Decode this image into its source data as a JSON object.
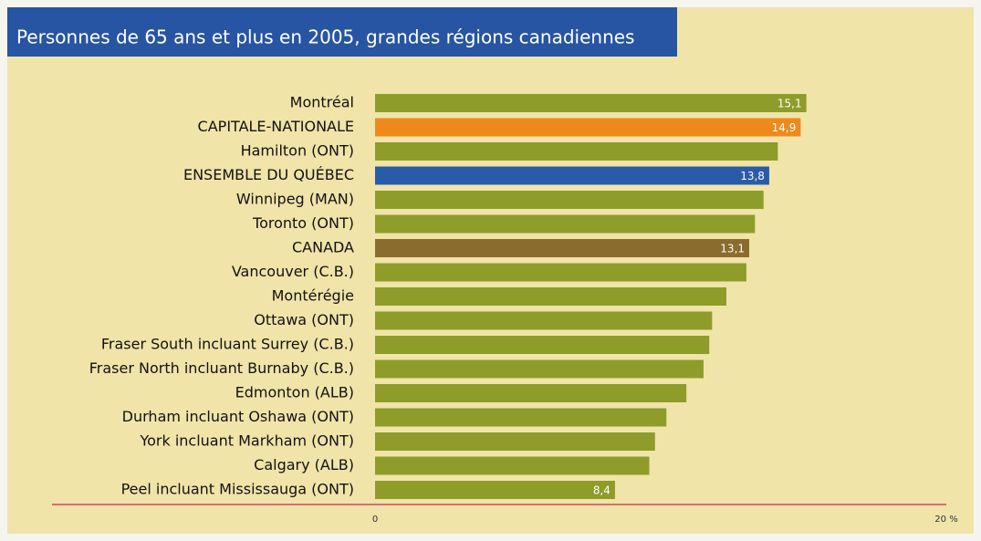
{
  "chart_data": {
    "type": "barh",
    "title": "Personnes de 65 ans et plus en 2005, grandes régions canadiennes",
    "categories": [
      "Montréal",
      "CAPITALE-NATIONALE",
      "Hamilton (ONT)",
      "ENSEMBLE DU QUÉBEC",
      "Winnipeg (MAN)",
      "Toronto (ONT)",
      "CANADA",
      "Vancouver (C.B.)",
      "Montérégie",
      "Ottawa (ONT)",
      "Fraser South incluant Surrey (C.B.)",
      "Fraser North incluant Burnaby (C.B.)",
      "Edmonton (ALB)",
      "Durham incluant Oshawa (ONT)",
      "York incluant Markham (ONT)",
      "Calgary (ALB)",
      "Peel incluant Mississauga (ONT)"
    ],
    "values": [
      15.1,
      14.9,
      14.1,
      13.8,
      13.6,
      13.3,
      13.1,
      13.0,
      12.3,
      11.8,
      11.7,
      11.5,
      10.9,
      10.2,
      9.8,
      9.6,
      8.4
    ],
    "value_labels": [
      "15,1",
      "14,9",
      null,
      "13,8",
      null,
      null,
      "13,1",
      null,
      null,
      null,
      null,
      null,
      null,
      null,
      null,
      null,
      "8,4"
    ],
    "colors": [
      "#8e9c2a",
      "#ee8a1b",
      "#8e9c2a",
      "#2a5ba8",
      "#8e9c2a",
      "#8e9c2a",
      "#8a6c2e",
      "#8e9c2a",
      "#8e9c2a",
      "#8e9c2a",
      "#8e9c2a",
      "#8e9c2a",
      "#8e9c2a",
      "#8e9c2a",
      "#8e9c2a",
      "#8e9c2a",
      "#8e9c2a"
    ],
    "xlim": [
      0,
      20
    ],
    "xticks": [
      0,
      {
        "value": 20,
        "label": "20 %"
      }
    ]
  }
}
